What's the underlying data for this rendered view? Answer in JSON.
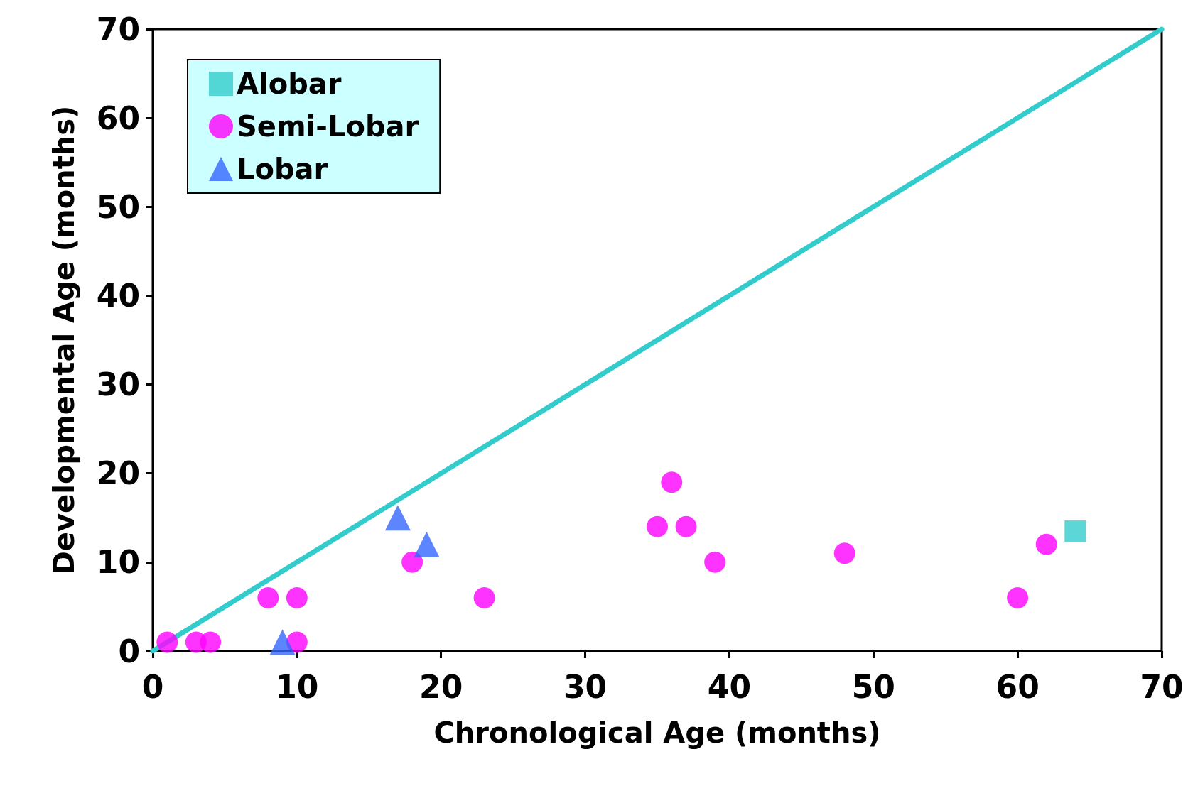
{
  "chart_data": {
    "type": "scatter",
    "xlabel": "Chronological Age (months)",
    "ylabel": "Developmental Age (months)",
    "xlim": [
      0,
      70
    ],
    "ylim": [
      0,
      70
    ],
    "xticks": [
      0,
      10,
      20,
      30,
      40,
      50,
      60,
      70
    ],
    "yticks": [
      0,
      10,
      20,
      30,
      40,
      50,
      60,
      70
    ],
    "grid": false,
    "legend": "top left",
    "series": [
      {
        "name": "Alobar",
        "color": "#33cccc",
        "marker": "square",
        "x": [
          64
        ],
        "values": [
          13.5
        ]
      },
      {
        "name": "Semi-Lobar",
        "color": "#ff00ff",
        "marker": "circle",
        "x": [
          1,
          3,
          4,
          8,
          10,
          10,
          18,
          23,
          35,
          36,
          37,
          39,
          48,
          60,
          62
        ],
        "values": [
          1,
          1,
          1,
          6,
          6,
          1,
          10,
          6,
          14,
          19,
          14,
          10,
          11,
          6,
          12
        ]
      },
      {
        "name": "Lobar",
        "color": "#3366ff",
        "marker": "triangle",
        "x": [
          9,
          17,
          19
        ],
        "values": [
          1,
          15,
          12
        ]
      },
      {
        "type": "line",
        "color": "#33cccc",
        "marker": "none",
        "line_style": "solid",
        "x": [
          0,
          70
        ],
        "values": [
          0,
          70
        ]
      }
    ]
  }
}
